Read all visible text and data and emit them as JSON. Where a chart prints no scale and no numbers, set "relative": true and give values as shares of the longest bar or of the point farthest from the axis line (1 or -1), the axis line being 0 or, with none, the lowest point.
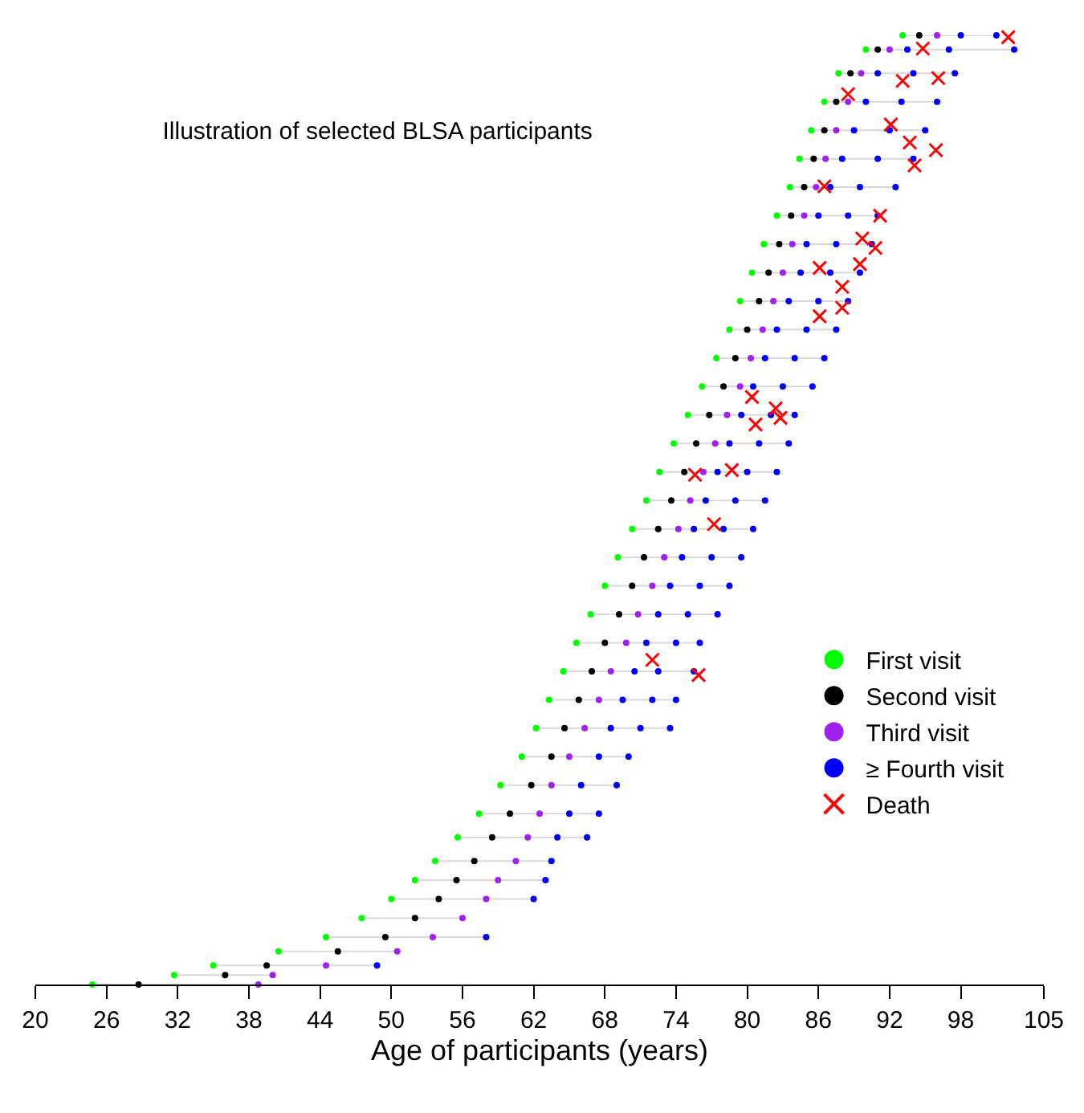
{
  "chart_data": {
    "type": "scatter",
    "title": "Illustration of selected BLSA participants",
    "xlabel": "Age of participants (years)",
    "relative": true,
    "xlim": [
      20,
      105
    ],
    "xticks": [
      20,
      26,
      32,
      38,
      44,
      50,
      56,
      62,
      68,
      74,
      80,
      86,
      92,
      98,
      105
    ],
    "legend": "bottom right",
    "series": [
      {
        "type": "line",
        "color": "#d9d9d9",
        "line_style": "solid",
        "marker": "none",
        "x": [
          24.8,
          38.8,
          null,
          31.7,
          40.0,
          null,
          35.0,
          48.8,
          null,
          40.5,
          50.5,
          null,
          44.5,
          58.0,
          null,
          47.5,
          56.0,
          null,
          50.0,
          62.0,
          null,
          52.0,
          63.0,
          null,
          53.7,
          63.5,
          null,
          55.6,
          66.5,
          null,
          57.4,
          67.5,
          null,
          59.2,
          69.0,
          null,
          61.0,
          70.0,
          null,
          62.2,
          73.5,
          null,
          63.3,
          74.0,
          null,
          64.5,
          75.5,
          null,
          65.6,
          76.0,
          null,
          66.8,
          77.5,
          null,
          68.0,
          78.5,
          null,
          69.1,
          79.5,
          null,
          70.3,
          80.5,
          null,
          71.5,
          81.5,
          null,
          72.6,
          82.5,
          null,
          73.8,
          83.5,
          null,
          75.0,
          84.0,
          null,
          76.2,
          85.5,
          null,
          77.4,
          86.5,
          null,
          78.5,
          87.5,
          null,
          79.4,
          88.5,
          null,
          80.4,
          89.5,
          null,
          81.4,
          90.5,
          null,
          82.5,
          91.0,
          null,
          83.6,
          92.5,
          null,
          84.4,
          94.0,
          null,
          85.4,
          95.0,
          null,
          86.5,
          96.0,
          null,
          87.7,
          97.5,
          null,
          90.0,
          102.5,
          null,
          93.1,
          101.0
        ],
        "values": [
          0,
          0,
          null,
          0.01,
          0.01,
          null,
          0.02,
          0.02,
          null,
          0.035,
          0.035,
          null,
          0.05,
          0.05,
          null,
          0.07,
          0.07,
          null,
          0.09,
          0.09,
          null,
          0.11,
          0.11,
          null,
          0.13,
          0.13,
          null,
          0.155,
          0.155,
          null,
          0.18,
          0.18,
          null,
          0.21,
          0.21,
          null,
          0.24,
          0.24,
          null,
          0.27,
          0.27,
          null,
          0.3,
          0.3,
          null,
          0.33,
          0.33,
          null,
          0.36,
          0.36,
          null,
          0.39,
          0.39,
          null,
          0.42,
          0.42,
          null,
          0.45,
          0.45,
          null,
          0.48,
          0.48,
          null,
          0.51,
          0.51,
          null,
          0.54,
          0.54,
          null,
          0.57,
          0.57,
          null,
          0.6,
          0.6,
          null,
          0.63,
          0.63,
          null,
          0.66,
          0.66,
          null,
          0.69,
          0.69,
          null,
          0.72,
          0.72,
          null,
          0.75,
          0.75,
          null,
          0.78,
          0.78,
          null,
          0.81,
          0.81,
          null,
          0.84,
          0.84,
          null,
          0.87,
          0.87,
          null,
          0.9,
          0.9,
          null,
          0.93,
          0.93,
          null,
          0.96,
          0.96,
          null,
          0.985,
          0.985,
          null,
          1,
          1
        ]
      },
      {
        "name": "First visit",
        "color": "#00ff00",
        "marker": "circle",
        "x": [
          24.8,
          31.7,
          35.0,
          40.5,
          44.5,
          47.5,
          50.0,
          52.0,
          53.7,
          55.6,
          57.4,
          59.2,
          61.0,
          62.2,
          63.3,
          64.5,
          65.6,
          66.8,
          68.0,
          69.1,
          70.3,
          71.5,
          72.6,
          73.8,
          75.0,
          76.2,
          77.4,
          78.5,
          79.4,
          80.4,
          81.4,
          82.5,
          83.6,
          84.4,
          85.4,
          86.5,
          87.7,
          90.0,
          93.1
        ],
        "values": [
          0,
          0.01,
          0.02,
          0.035,
          0.05,
          0.07,
          0.09,
          0.11,
          0.13,
          0.155,
          0.18,
          0.21,
          0.24,
          0.27,
          0.3,
          0.33,
          0.36,
          0.39,
          0.42,
          0.45,
          0.48,
          0.51,
          0.54,
          0.57,
          0.6,
          0.63,
          0.66,
          0.69,
          0.72,
          0.75,
          0.78,
          0.81,
          0.84,
          0.87,
          0.9,
          0.93,
          0.96,
          0.985,
          1
        ]
      },
      {
        "name": "Second visit",
        "color": "#000000",
        "marker": "circle",
        "x": [
          28.7,
          36.0,
          39.5,
          45.5,
          49.5,
          52.0,
          54.0,
          55.5,
          57.0,
          58.5,
          60.0,
          61.8,
          63.5,
          64.6,
          65.8,
          66.9,
          68.0,
          69.2,
          70.3,
          71.3,
          72.5,
          73.6,
          74.7,
          75.7,
          76.8,
          78.0,
          79.0,
          80.0,
          81.0,
          81.8,
          82.7,
          83.7,
          84.8,
          85.6,
          86.5,
          87.5,
          88.7,
          91.0,
          94.5
        ],
        "values": [
          0,
          0.01,
          0.02,
          0.035,
          0.05,
          0.07,
          0.09,
          0.11,
          0.13,
          0.155,
          0.18,
          0.21,
          0.24,
          0.27,
          0.3,
          0.33,
          0.36,
          0.39,
          0.42,
          0.45,
          0.48,
          0.51,
          0.54,
          0.57,
          0.6,
          0.63,
          0.66,
          0.69,
          0.72,
          0.75,
          0.78,
          0.81,
          0.84,
          0.87,
          0.9,
          0.93,
          0.96,
          0.985,
          1
        ]
      },
      {
        "name": "Third visit",
        "color": "#a020f0",
        "marker": "circle",
        "x": [
          38.8,
          40.0,
          44.5,
          50.5,
          53.5,
          56.0,
          58.0,
          59.0,
          60.5,
          61.5,
          62.5,
          63.5,
          65.0,
          66.3,
          67.5,
          68.5,
          69.8,
          70.8,
          72.0,
          73.0,
          74.2,
          75.2,
          76.3,
          77.3,
          78.3,
          79.4,
          80.3,
          81.3,
          82.2,
          83.0,
          83.8,
          84.8,
          85.8,
          86.6,
          87.5,
          88.5,
          89.6,
          92.0,
          96.0
        ],
        "values": [
          0,
          0.01,
          0.02,
          0.035,
          0.05,
          0.07,
          0.09,
          0.11,
          0.13,
          0.155,
          0.18,
          0.21,
          0.24,
          0.27,
          0.3,
          0.33,
          0.36,
          0.39,
          0.42,
          0.45,
          0.48,
          0.51,
          0.54,
          0.57,
          0.6,
          0.63,
          0.66,
          0.69,
          0.72,
          0.75,
          0.78,
          0.81,
          0.84,
          0.87,
          0.9,
          0.93,
          0.96,
          0.985,
          1
        ]
      },
      {
        "name": "≥ Fourth visit",
        "color": "#0000ff",
        "marker": "circle",
        "x": [
          48.8,
          58.0,
          62.0,
          63.0,
          63.5,
          64.0,
          66.5,
          65.0,
          67.5,
          66.0,
          69.0,
          67.5,
          70.0,
          68.5,
          71.0,
          73.5,
          69.5,
          72.0,
          74.0,
          70.5,
          72.5,
          75.5,
          71.5,
          74.0,
          76.0,
          72.5,
          75.0,
          77.5,
          73.5,
          76.0,
          78.5,
          74.5,
          77.0,
          79.5,
          75.5,
          78.0,
          80.5,
          76.5,
          79.0,
          81.5,
          77.5,
          80.0,
          82.5,
          78.5,
          81.0,
          83.5,
          79.5,
          82.0,
          84.0,
          80.5,
          83.0,
          85.5,
          81.5,
          84.0,
          86.5,
          82.5,
          85.0,
          87.5,
          83.5,
          86.0,
          88.5,
          84.5,
          87.0,
          89.5,
          85.0,
          87.5,
          90.5,
          86.0,
          88.5,
          91.0,
          87.0,
          89.5,
          92.5,
          88.0,
          91.0,
          94.0,
          89.0,
          92.0,
          95.0,
          90.0,
          93.0,
          96.0,
          91.0,
          94.0,
          97.5,
          93.5,
          97.0,
          102.5,
          98.0,
          101.0
        ],
        "values": [
          0.02,
          0.05,
          0.09,
          0.11,
          0.13,
          0.155,
          0.155,
          0.18,
          0.18,
          0.21,
          0.21,
          0.24,
          0.24,
          0.27,
          0.27,
          0.27,
          0.3,
          0.3,
          0.3,
          0.33,
          0.33,
          0.33,
          0.36,
          0.36,
          0.36,
          0.39,
          0.39,
          0.39,
          0.42,
          0.42,
          0.42,
          0.45,
          0.45,
          0.45,
          0.48,
          0.48,
          0.48,
          0.51,
          0.51,
          0.51,
          0.54,
          0.54,
          0.54,
          0.57,
          0.57,
          0.57,
          0.6,
          0.6,
          0.6,
          0.63,
          0.63,
          0.63,
          0.66,
          0.66,
          0.66,
          0.69,
          0.69,
          0.69,
          0.72,
          0.72,
          0.72,
          0.75,
          0.75,
          0.75,
          0.78,
          0.78,
          0.78,
          0.81,
          0.81,
          0.81,
          0.84,
          0.84,
          0.84,
          0.87,
          0.87,
          0.87,
          0.9,
          0.9,
          0.9,
          0.93,
          0.93,
          0.93,
          0.96,
          0.96,
          0.96,
          0.985,
          0.985,
          0.985,
          1,
          1
        ]
      },
      {
        "name": "Death",
        "color": "#ff0000",
        "marker": "cross",
        "x": [
          72.0,
          75.9,
          77.2,
          78.7,
          75.6,
          80.7,
          82.4,
          82.8,
          80.4,
          86.1,
          86.1,
          88.0,
          88.0,
          89.5,
          90.8,
          89.7,
          91.2,
          86.5,
          94.1,
          95.9,
          93.7,
          92.1,
          88.5,
          93.1,
          96.1,
          94.8,
          102.0
        ],
        "values": [
          0.342,
          0.326,
          0.485,
          0.542,
          0.537,
          0.59,
          0.607,
          0.597,
          0.619,
          0.704,
          0.755,
          0.713,
          0.735,
          0.759,
          0.776,
          0.786,
          0.81,
          0.841,
          0.863,
          0.879,
          0.887,
          0.906,
          0.938,
          0.952,
          0.955,
          0.986,
          0.998
        ]
      }
    ]
  }
}
